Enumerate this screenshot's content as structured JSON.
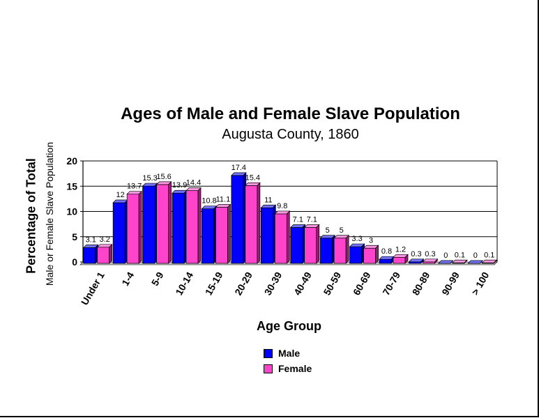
{
  "chart_data": {
    "type": "bar",
    "title": "Ages of Male and Female Slave Population",
    "subtitle": "Augusta County, 1860",
    "ylabel": "Percentage of Total",
    "ylabel_sub": "Male or Female Slave Population",
    "xlabel": "Age Group",
    "categories": [
      "Under 1",
      "1-4",
      "5-9",
      "10-14",
      "15-19",
      "20-29",
      "30-39",
      "40-49",
      "50-59",
      "60-69",
      "70-79",
      "80-89",
      "90-99",
      "> 100"
    ],
    "series": [
      {
        "name": "Male",
        "color": "#0000ff",
        "values": [
          3.1,
          12,
          15.3,
          13.9,
          10.8,
          17.4,
          11,
          7.1,
          5,
          3.3,
          0.8,
          0.3,
          0,
          0
        ],
        "value_labels": [
          "3.1",
          "12",
          "15.3",
          "13.9",
          "10.8",
          "17.4",
          "11",
          "7.1",
          "5",
          "3.3",
          "0.8",
          "0.3",
          "0",
          "0"
        ]
      },
      {
        "name": "Female",
        "color": "#ff44cc",
        "values": [
          3.2,
          13.7,
          15.6,
          14.4,
          11.1,
          15.4,
          9.8,
          7.1,
          5,
          3,
          1.2,
          0.3,
          0.1,
          0.1
        ],
        "value_labels": [
          "3.2",
          "13.7",
          "15.6",
          "14.4",
          "11.1",
          "15.4",
          "9.8",
          "7.1",
          "5",
          "3",
          "1.2",
          "0.3",
          "0.1",
          "0.1"
        ]
      }
    ],
    "ylim": [
      0,
      20
    ],
    "yticks": [
      0,
      5,
      10,
      15,
      20
    ],
    "grid": true,
    "legend_position": "bottom"
  }
}
